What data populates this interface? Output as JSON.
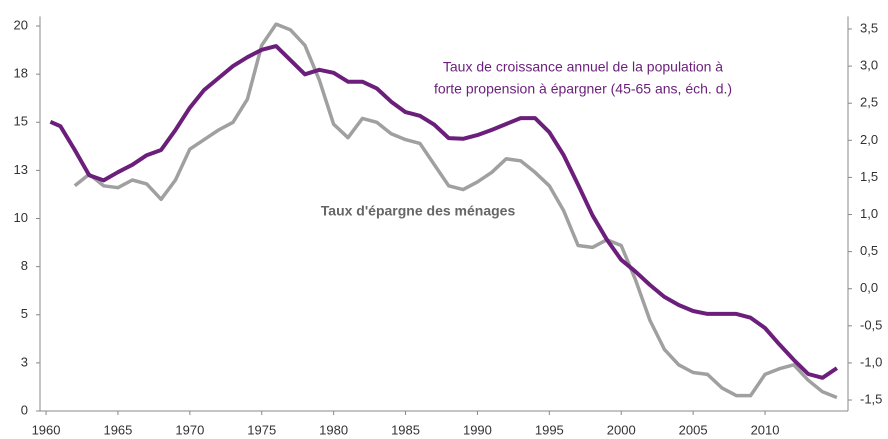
{
  "chart_data": {
    "type": "line",
    "annotations": [
      {
        "lines": [
          "Taux de croissance annuel de la population à",
          "forte propension à épargner (45-65 ans, éch. d.)"
        ],
        "color": "#6b1f7b"
      },
      {
        "lines": [
          "Taux d'épargne des ménages"
        ],
        "color": "#666666"
      }
    ],
    "xlim": [
      1959.58,
      2015.77
    ],
    "xticks": [
      1960,
      1965,
      1970,
      1975,
      1980,
      1985,
      1990,
      1995,
      2000,
      2005,
      2010
    ],
    "ylim": [
      0,
      20.5
    ],
    "yticks": [
      0,
      {
        "value": 2.5,
        "label": "3"
      },
      5,
      {
        "value": 7.5,
        "label": "8"
      },
      10,
      {
        "value": 12.5,
        "label": "13"
      },
      15,
      {
        "value": 17.5,
        "label": "18"
      },
      20
    ],
    "y2lim": [
      -1.648,
      3.67
    ],
    "y2ticks": [
      {
        "value": -1.5,
        "label": "-1,5"
      },
      {
        "value": -1,
        "label": "-1,0"
      },
      {
        "value": -0.5,
        "label": "-0,5"
      },
      {
        "value": 0,
        "label": "0,0"
      },
      {
        "value": 0.5,
        "label": "0,5"
      },
      {
        "value": 1,
        "label": "1,0"
      },
      {
        "value": 1.5,
        "label": "1,5"
      },
      {
        "value": 2,
        "label": "2,0"
      },
      {
        "value": 2.5,
        "label": "2,5"
      },
      {
        "value": 3,
        "label": "3,0"
      },
      {
        "value": 3.5,
        "label": "3,5"
      }
    ],
    "series": [
      {
        "name": "Taux de croissance annuel de la population à forte propension à épargner (45-65 ans, éch. d.)",
        "color": "#6b1f7b",
        "axis": "y2",
        "x": [
          1960.3,
          1961,
          1962,
          1963,
          1964,
          1965,
          1966,
          1967,
          1968,
          1969,
          1970,
          1971,
          1972,
          1973,
          1974,
          1975,
          1976,
          1977,
          1978,
          1979,
          1980,
          1981,
          1982,
          1983,
          1984,
          1985,
          1986,
          1987,
          1988,
          1989,
          1990,
          1991,
          1992,
          1993,
          1994,
          1995,
          1996,
          1997,
          1998,
          1999,
          2000,
          2001,
          2002,
          2003,
          2004,
          2005,
          2006,
          2007,
          2008,
          2009,
          2010,
          2011,
          2012,
          2013,
          2014,
          2015
        ],
        "values": [
          2.25,
          2.19,
          1.87,
          1.53,
          1.46,
          1.57,
          1.67,
          1.8,
          1.87,
          2.14,
          2.44,
          2.68,
          2.84,
          3.0,
          3.12,
          3.22,
          3.27,
          3.08,
          2.89,
          2.95,
          2.91,
          2.79,
          2.79,
          2.7,
          2.52,
          2.38,
          2.33,
          2.21,
          2.03,
          2.02,
          2.07,
          2.14,
          2.22,
          2.3,
          2.3,
          2.11,
          1.8,
          1.4,
          0.99,
          0.66,
          0.39,
          0.23,
          0.05,
          -0.11,
          -0.22,
          -0.3,
          -0.34,
          -0.34,
          -0.34,
          -0.39,
          -0.53,
          -0.75,
          -0.96,
          -1.15,
          -1.2,
          -1.07
        ]
      },
      {
        "name": "Taux d'épargne des ménages",
        "color": "#a0a0a0",
        "x": [
          1962,
          1963,
          1964,
          1965,
          1966,
          1967,
          1968,
          1969,
          1970,
          1971,
          1972,
          1973,
          1974,
          1975,
          1976,
          1977,
          1978,
          1979,
          1980,
          1981,
          1982,
          1983,
          1984,
          1985,
          1986,
          1987,
          1988,
          1989,
          1990,
          1991,
          1992,
          1993,
          1994,
          1995,
          1996,
          1997,
          1998,
          1999,
          2000,
          2001,
          2002,
          2003,
          2004,
          2005,
          2006,
          2007,
          2008,
          2009,
          2010,
          2011,
          2012,
          2013,
          2014,
          2015
        ],
        "values": [
          11.7,
          12.3,
          11.7,
          11.6,
          12.0,
          11.8,
          11.0,
          12.0,
          13.6,
          14.1,
          14.6,
          15.0,
          16.2,
          19.0,
          20.1,
          19.8,
          19.0,
          17.2,
          14.9,
          14.2,
          15.2,
          15.0,
          14.4,
          14.1,
          13.9,
          12.8,
          11.7,
          11.5,
          11.9,
          12.4,
          13.1,
          13.0,
          12.4,
          11.7,
          10.4,
          8.6,
          8.5,
          8.9,
          8.6,
          6.8,
          4.7,
          3.2,
          2.4,
          2.0,
          1.9,
          1.2,
          0.8,
          0.8,
          1.9,
          2.2,
          2.4,
          1.6,
          1.0,
          0.7
        ]
      }
    ]
  }
}
